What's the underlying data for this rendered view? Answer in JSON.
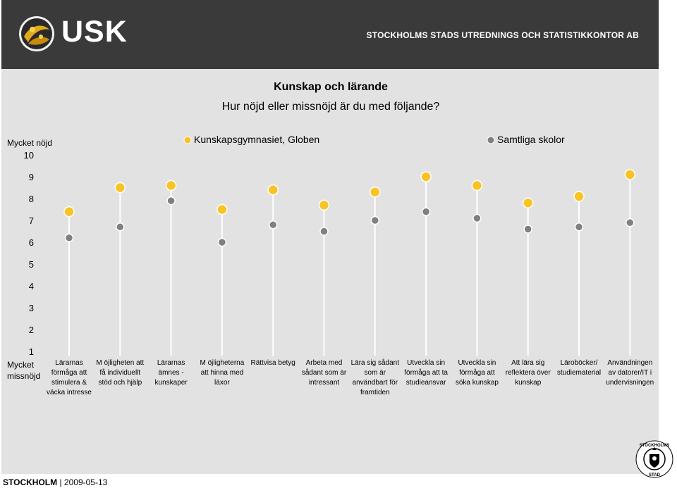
{
  "header": {
    "logo_text": "USK",
    "org_name": "STOCKHOLMS STADS UTREDNINGS OCH STATISTIKKONTOR AB"
  },
  "footer": {
    "city": "STOCKHOLM",
    "separator": "|",
    "date": "2009-05-13"
  },
  "seal": {
    "text": "STOCKHOLMS STAD"
  },
  "colors": {
    "series_1": "#f7c325",
    "series_2": "#808080",
    "header_bg": "#3a3a3a",
    "panel_bg": "#e2e2e2"
  },
  "chart_data": {
    "type": "scatter",
    "title": "Kunskap och lärande",
    "subtitle": "Hur nöjd eller missnöjd är du med följande?",
    "ylim": [
      1,
      10
    ],
    "yticks": [
      "1",
      "2",
      "3",
      "4",
      "5",
      "6",
      "7",
      "8",
      "9",
      "10"
    ],
    "y_top_label": "Mycket nöjd",
    "y_bottom_label": "Mycket missnöjd",
    "legend_placement": "top",
    "grid": false,
    "categories": [
      "Lärarnas förmåga att stimulera & väcka intresse",
      "M öjligheten att få individuellt stöd och hjälp",
      "Lärarnas ämnes - kunskaper",
      "M öjligheterna att hinna med läxor",
      "Rättvisa betyg",
      "Arbeta med sådant som är intressant",
      "Lära sig sådant som är användbart för framtiden",
      "Utveckla sin förmåga att ta studieansvar",
      "Utveckla sin förmåga att söka kunskap",
      "Att lära sig reflektera över kunskap",
      "Läroböcker/ studiematerial",
      "Användningen av datorer/IT i undervisningen"
    ],
    "category_lines": [
      [
        "Lärarnas",
        "förmåga att",
        "stimulera &",
        "väcka intresse"
      ],
      [
        "M öjligheten att",
        "få individuellt",
        "stöd och hjälp"
      ],
      [
        "Lärarnas",
        "ämnes -",
        "kunskaper"
      ],
      [
        "M öjligheterna",
        "att hinna med",
        "läxor"
      ],
      [
        "Rättvisa betyg"
      ],
      [
        "Arbeta med",
        "sådant som är",
        "intressant"
      ],
      [
        "Lära sig sådant",
        "som är",
        "användbart för",
        "framtiden"
      ],
      [
        "Utveckla sin",
        "förmåga att ta",
        "studieansvar"
      ],
      [
        "Utveckla sin",
        "förmåga att",
        "söka kunskap"
      ],
      [
        "Att lära sig",
        "reflektera över",
        "kunskap"
      ],
      [
        "Läroböcker/",
        "studiematerial"
      ],
      [
        "Användningen",
        "av datorer/IT i",
        "undervisningen"
      ]
    ],
    "series": [
      {
        "name": "Kunskapsgymnasiet, Globen",
        "color": "#f7c325",
        "values": [
          7.4,
          8.5,
          8.6,
          7.5,
          8.4,
          7.7,
          8.3,
          9.0,
          8.6,
          7.8,
          8.1,
          9.1
        ]
      },
      {
        "name": "Samtliga skolor",
        "color": "#808080",
        "values": [
          6.2,
          6.7,
          7.9,
          6.0,
          6.8,
          6.5,
          7.0,
          7.4,
          7.1,
          6.6,
          6.7,
          6.9
        ]
      }
    ]
  }
}
